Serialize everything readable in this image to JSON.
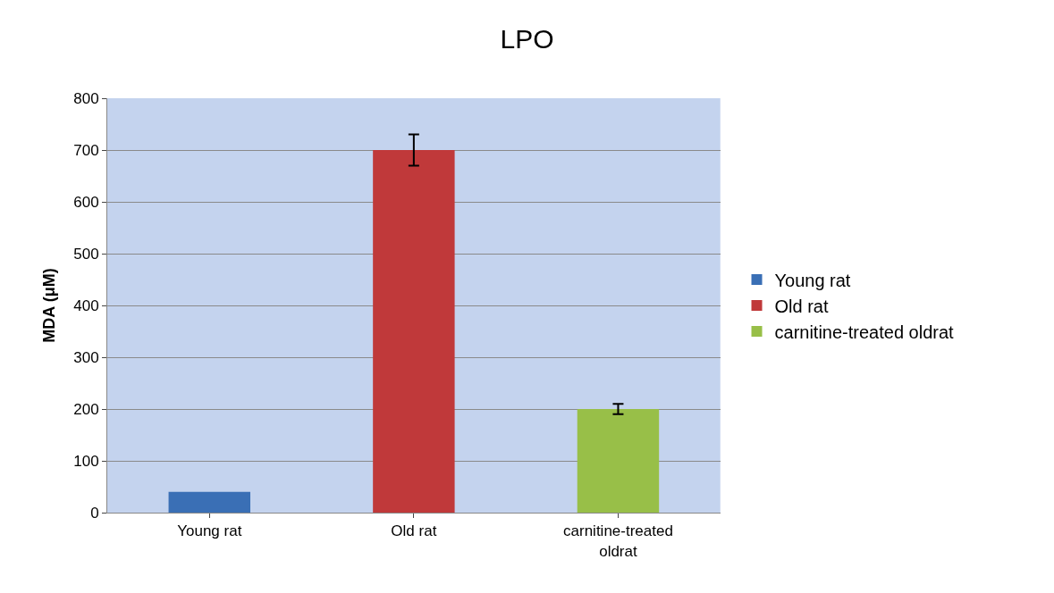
{
  "chart_data": {
    "type": "bar",
    "title": "LPO",
    "ylabel": "MDA (μM)",
    "categories": [
      "Young rat",
      "Old rat",
      "carnitine-treated oldrat"
    ],
    "series": [
      {
        "name": "Young rat",
        "color": "#3a6fb5",
        "values": [
          40,
          null,
          null
        ]
      },
      {
        "name": "Old rat",
        "color": "#c0393a",
        "values": [
          null,
          700,
          null
        ],
        "errors": [
          null,
          30,
          null
        ]
      },
      {
        "name": "carnitine-treated oldrat",
        "color": "#98bf48",
        "values": [
          null,
          null,
          200
        ],
        "errors": [
          null,
          null,
          10
        ]
      }
    ],
    "ylim": [
      0,
      800
    ],
    "yticks": [
      0,
      100,
      200,
      300,
      400,
      500,
      600,
      700,
      800
    ],
    "grid": "y",
    "legend": "right"
  }
}
